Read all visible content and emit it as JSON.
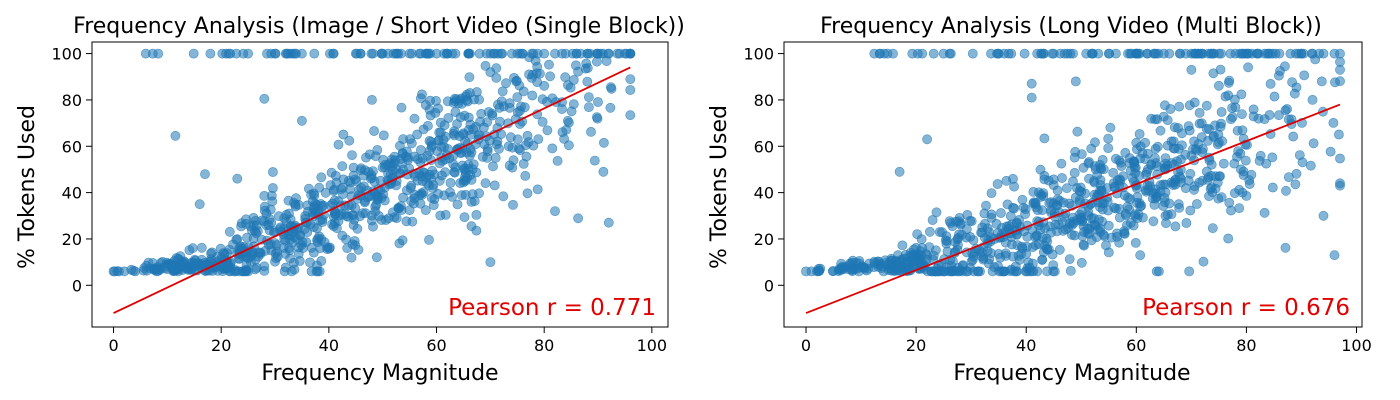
{
  "colors": {
    "points": "#1f77b4",
    "fit_line": "#e00000",
    "annotation": "#e00000"
  },
  "chart_data": [
    {
      "type": "scatter",
      "title": "Frequency Analysis (Image / Short Video (Single Block))",
      "xlabel": "Frequency Magnitude",
      "ylabel": "% Tokens Used",
      "xlim": [
        -4,
        103
      ],
      "ylim": [
        -18,
        105
      ],
      "xticks": [
        0,
        20,
        40,
        60,
        80,
        100
      ],
      "yticks": [
        0,
        20,
        40,
        60,
        80,
        100
      ],
      "grid": false,
      "annotation": "Pearson r = 0.771",
      "fit_line": {
        "x": [
          0,
          96
        ],
        "y": [
          -12,
          94
        ]
      },
      "generator": {
        "n": 900,
        "xmax": 96,
        "floor": 6,
        "slope": 1.1,
        "intercept": -12,
        "noise": 13,
        "seed": 7
      },
      "x": [
        0,
        1,
        2,
        4,
        8,
        12,
        25,
        30,
        32,
        35,
        50,
        52,
        55,
        58,
        60,
        62,
        66,
        68,
        70,
        72,
        74,
        76,
        78,
        80,
        82,
        84,
        86,
        88,
        90,
        92,
        94,
        95,
        11.5,
        17,
        16,
        23,
        28,
        35,
        48,
        70,
        82,
        92,
        96,
        91
      ],
      "y": [
        6,
        6,
        6,
        6,
        6,
        6,
        100,
        100,
        100,
        100,
        100,
        100,
        100,
        100,
        100,
        100,
        100,
        100,
        100,
        100,
        100,
        100,
        100,
        100,
        100,
        100,
        100,
        100,
        100,
        100,
        100,
        100,
        64.5,
        48,
        35,
        46,
        80.5,
        71,
        80,
        10,
        32,
        27,
        89,
        49
      ]
    },
    {
      "type": "scatter",
      "title": "Frequency Analysis (Long Video (Multi Block))",
      "xlabel": "Frequency Magnitude",
      "ylabel": "% Tokens Used",
      "xlim": [
        -4,
        101
      ],
      "ylim": [
        -18,
        105
      ],
      "xticks": [
        0,
        20,
        40,
        60,
        80,
        100
      ],
      "yticks": [
        0,
        20,
        40,
        60,
        80,
        100
      ],
      "grid": false,
      "annotation": "Pearson r = 0.676",
      "fit_line": {
        "x": [
          0,
          97
        ],
        "y": [
          -12,
          78
        ]
      },
      "generator": {
        "n": 900,
        "xmax": 97,
        "floor": 6,
        "slope": 0.93,
        "intercept": -12,
        "noise": 14,
        "seed": 21
      },
      "x": [
        0,
        1,
        2,
        25,
        35,
        36,
        42,
        45,
        47,
        48,
        52,
        55,
        60,
        62,
        64,
        66,
        68,
        70,
        72,
        74,
        78,
        80,
        82,
        84,
        86,
        88,
        90,
        92,
        94,
        96,
        41,
        41,
        17,
        22,
        49,
        70,
        92,
        94,
        96,
        97
      ],
      "y": [
        6,
        6,
        6,
        100,
        100,
        100,
        100,
        100,
        100,
        100,
        100,
        100,
        100,
        100,
        100,
        100,
        100,
        100,
        100,
        100,
        100,
        100,
        100,
        100,
        100,
        100,
        100,
        100,
        100,
        100,
        87,
        81,
        49,
        63,
        88,
        93,
        80,
        30,
        13,
        43
      ]
    }
  ]
}
